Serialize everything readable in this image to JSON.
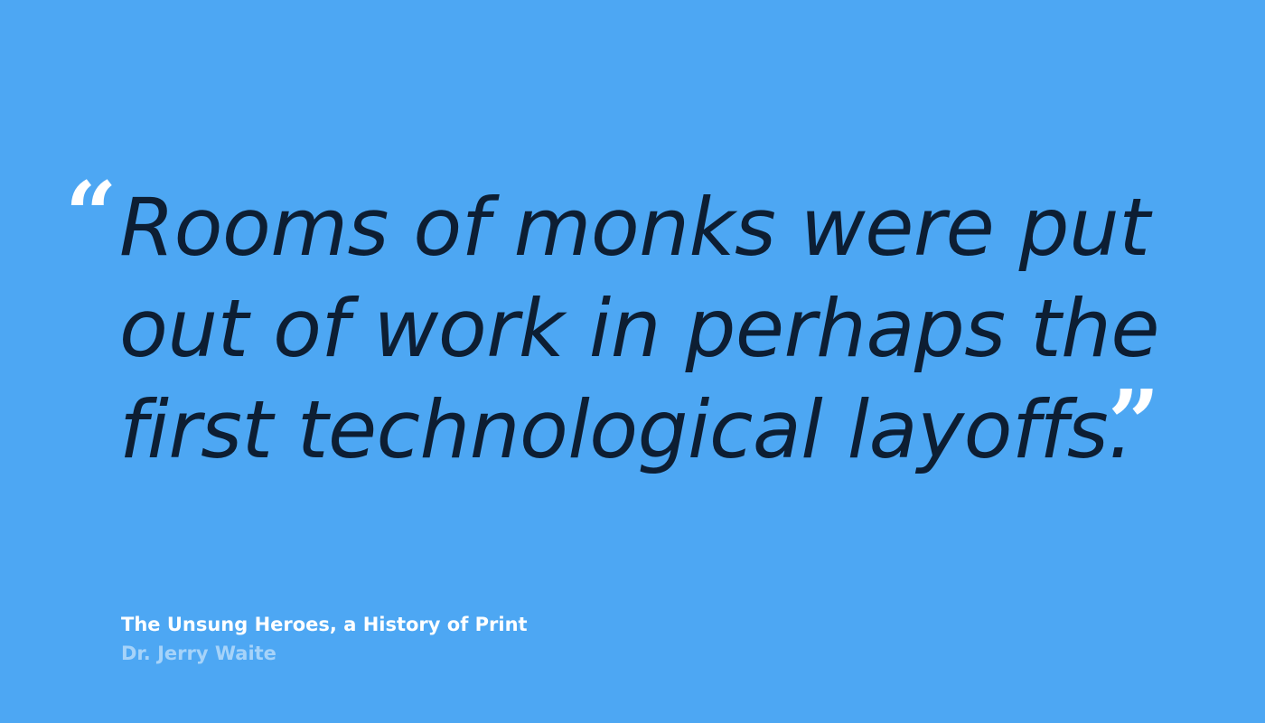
{
  "colors": {
    "background": "#4da7f3",
    "quote_text": "#0d1e33",
    "quote_marks": "#ffffff",
    "source_title": "#ffffff",
    "author": "#a6d3f9"
  },
  "quote": {
    "open_mark": "“",
    "close_mark": "”",
    "lines": [
      "Rooms of monks were put",
      "out of work in perhaps the",
      "first technological layoffs."
    ]
  },
  "attribution": {
    "source_title": "The Unsung Heroes, a History of Print",
    "author": "Dr. Jerry Waite"
  }
}
